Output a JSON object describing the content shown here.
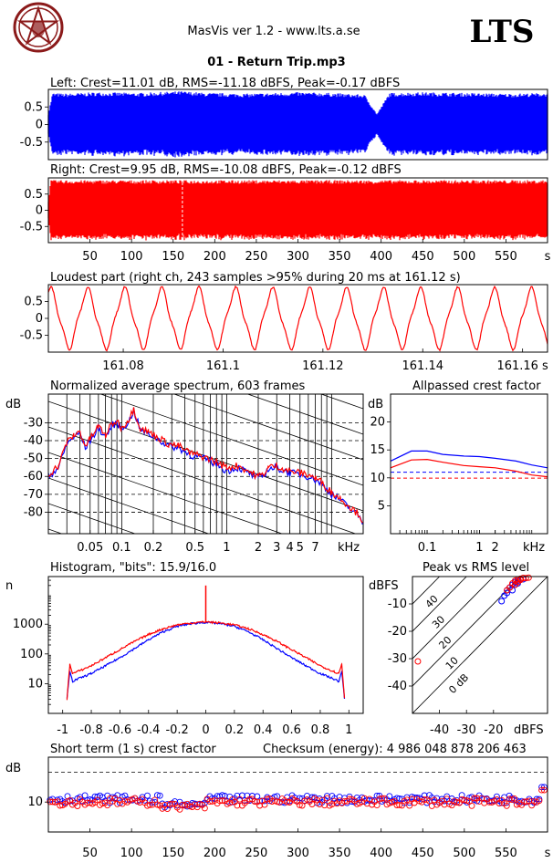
{
  "header": {
    "app_title": "MasVis ver 1.2 - www.lts.a.se",
    "brand": "LTS",
    "file_title": "01 - Return Trip.mp3"
  },
  "chart_data": [
    {
      "id": "left",
      "type": "area",
      "title": "Left: Crest=11.01 dB, RMS=-11.18 dBFS, Peak=-0.17 dBFS",
      "color": "#0000ff",
      "ylim": [
        -1,
        1
      ],
      "yticks": [
        "0.5",
        "0",
        "-0.5"
      ],
      "ytick_values": [
        0.5,
        0,
        -0.5
      ],
      "xlim": [
        0,
        600
      ],
      "envelope_x": [
        0,
        5,
        20,
        60,
        110,
        160,
        190,
        240,
        300,
        340,
        380,
        395,
        410,
        450,
        500,
        550,
        600
      ],
      "envelope_y": [
        0.3,
        0.9,
        0.88,
        0.92,
        0.9,
        0.95,
        0.9,
        0.88,
        0.92,
        0.9,
        0.85,
        0.3,
        0.9,
        0.92,
        0.9,
        0.88,
        0.9
      ]
    },
    {
      "id": "right",
      "type": "area",
      "title": "Right: Crest=9.95 dB, RMS=-10.08 dBFS, Peak=-0.12 dBFS",
      "color": "#ff0000",
      "ylim": [
        -1,
        1
      ],
      "yticks": [
        "0.5",
        "0",
        "-0.5"
      ],
      "ytick_values": [
        0.5,
        0,
        -0.5
      ],
      "xlim": [
        0,
        600
      ],
      "xticks": [
        "50",
        "100",
        "150",
        "200",
        "250",
        "300",
        "350",
        "400",
        "450",
        "500",
        "550",
        "s"
      ],
      "xtick_values": [
        50,
        100,
        150,
        200,
        250,
        300,
        350,
        400,
        450,
        500,
        550,
        600
      ],
      "marker_x": 161.12
    },
    {
      "id": "loudest",
      "type": "line",
      "title": "Loudest part (right ch, 243 samples >95% during 20 ms at 161.12 s)",
      "color": "#ff0000",
      "xlim": [
        161.065,
        161.165
      ],
      "ylim": [
        -1,
        1
      ],
      "yticks": [
        "0.5",
        "0",
        "-0.5"
      ],
      "ytick_values": [
        0.5,
        0,
        -0.5
      ],
      "xticks": [
        "161.08",
        "161.1",
        "161.12",
        "161.14",
        "161.16 s"
      ],
      "xtick_values": [
        161.08,
        161.1,
        161.12,
        161.14,
        161.16
      ],
      "periods": 13.5
    },
    {
      "id": "spectrum",
      "type": "line",
      "title": "Normalized average spectrum, 603 frames",
      "ylabel": "dB",
      "xlabel": "kHz",
      "xscale": "log",
      "xlim": [
        0.02,
        20
      ],
      "ylim": [
        -92,
        -14
      ],
      "yticks": [
        "-30",
        "-40",
        "-50",
        "-60",
        "-70",
        "-80"
      ],
      "ytick_values": [
        -30,
        -40,
        -50,
        -60,
        -70,
        -80
      ],
      "xticks": [
        "0.05",
        "0.1",
        "0.2",
        "0.5",
        "1",
        "2",
        "3",
        "4",
        "5",
        "7"
      ],
      "xtick_values": [
        0.05,
        0.1,
        0.2,
        0.5,
        1,
        2,
        3,
        4,
        5,
        7
      ],
      "series": [
        {
          "color": "#0000ff",
          "x": [
            0.02,
            0.025,
            0.03,
            0.035,
            0.04,
            0.045,
            0.05,
            0.06,
            0.07,
            0.08,
            0.09,
            0.1,
            0.12,
            0.13,
            0.15,
            0.18,
            0.22,
            0.28,
            0.35,
            0.45,
            0.6,
            0.8,
            1.0,
            1.3,
            1.6,
            2.0,
            2.2,
            2.5,
            3.0,
            3.5,
            4.0,
            5.0,
            6.0,
            7.0,
            8.0,
            10.0,
            12.0,
            15.0,
            18.0,
            20.0
          ],
          "y": [
            -60,
            -55,
            -42,
            -38,
            -36,
            -44,
            -40,
            -33,
            -38,
            -32,
            -30,
            -34,
            -28,
            -23,
            -34,
            -36,
            -39,
            -43,
            -44,
            -48,
            -50,
            -53,
            -57,
            -55,
            -58,
            -61,
            -60,
            -56,
            -55,
            -57,
            -58,
            -59,
            -60,
            -62,
            -64,
            -70,
            -73,
            -78,
            -82,
            -86
          ]
        },
        {
          "color": "#ff0000",
          "x": [
            0.02,
            0.025,
            0.03,
            0.035,
            0.04,
            0.045,
            0.05,
            0.06,
            0.07,
            0.08,
            0.09,
            0.1,
            0.12,
            0.13,
            0.15,
            0.18,
            0.22,
            0.28,
            0.35,
            0.45,
            0.6,
            0.8,
            1.0,
            1.3,
            1.6,
            2.0,
            2.2,
            2.5,
            3.0,
            3.5,
            4.0,
            5.0,
            6.0,
            7.0,
            8.0,
            10.0,
            12.0,
            15.0,
            18.0,
            20.0
          ],
          "y": [
            -59,
            -54,
            -41,
            -37,
            -35,
            -43,
            -39,
            -32,
            -37,
            -31,
            -29,
            -33,
            -27,
            -22,
            -33,
            -35,
            -38,
            -42,
            -43,
            -47,
            -49,
            -52,
            -55,
            -54,
            -57,
            -60,
            -59,
            -55,
            -54,
            -56,
            -57,
            -58,
            -59,
            -61,
            -63,
            -69,
            -72,
            -77,
            -81,
            -85
          ]
        }
      ]
    },
    {
      "id": "allpass",
      "type": "line",
      "title": "Allpassed crest factor",
      "ylabel": "dB",
      "xlabel": "kHz",
      "xscale": "log",
      "xlim": [
        0.02,
        20
      ],
      "ylim": [
        0,
        25
      ],
      "yticks": [
        "20",
        "15",
        "10",
        "5"
      ],
      "ytick_values": [
        20,
        15,
        10,
        5
      ],
      "xticks": [
        "0.1",
        "1",
        "2"
      ],
      "xtick_values": [
        0.1,
        1,
        2
      ],
      "series": [
        {
          "color": "#0000ff",
          "x": [
            0.02,
            0.05,
            0.1,
            0.2,
            0.5,
            1,
            2,
            5,
            10,
            20
          ],
          "y": [
            13,
            14.8,
            14.8,
            14.2,
            13.9,
            13.8,
            13.5,
            13.0,
            12.3,
            11.8
          ]
        },
        {
          "color": "#ff0000",
          "x": [
            0.02,
            0.05,
            0.1,
            0.2,
            0.5,
            1,
            2,
            5,
            10,
            20
          ],
          "y": [
            11.8,
            13.2,
            13.3,
            12.8,
            12.2,
            12.0,
            11.8,
            11.2,
            10.5,
            10.2
          ]
        }
      ],
      "reference_lines": [
        {
          "color": "#0000ff",
          "y": 11.01
        },
        {
          "color": "#ff0000",
          "y": 9.95
        }
      ]
    },
    {
      "id": "histogram",
      "type": "line",
      "title": "Histogram, \"bits\": 15.9/16.0",
      "ylabel": "n",
      "yscale": "log",
      "xlim": [
        -1.1,
        1.1
      ],
      "ylim": [
        1,
        40000
      ],
      "yticks": [
        "1000",
        "100",
        "10"
      ],
      "ytick_values": [
        1000,
        100,
        10
      ],
      "xticks": [
        "-1",
        "-0.8",
        "-0.6",
        "-0.4",
        "-0.2",
        "0",
        "0.2",
        "0.4",
        "0.6",
        "0.8",
        "1"
      ],
      "xtick_values": [
        -1,
        -0.8,
        -0.6,
        -0.4,
        -0.2,
        0,
        0.2,
        0.4,
        0.6,
        0.8,
        1
      ],
      "series": [
        {
          "color": "#0000ff",
          "x": [
            -0.97,
            -0.95,
            -0.93,
            -0.9,
            -0.8,
            -0.7,
            -0.6,
            -0.5,
            -0.4,
            -0.3,
            -0.2,
            -0.1,
            0,
            0.1,
            0.2,
            0.3,
            0.4,
            0.5,
            0.6,
            0.7,
            0.8,
            0.9,
            0.93,
            0.95,
            0.97
          ],
          "y": [
            3,
            25,
            12,
            14,
            22,
            40,
            75,
            150,
            300,
            550,
            850,
            1050,
            1150,
            1050,
            850,
            550,
            300,
            150,
            75,
            40,
            22,
            14,
            12,
            25,
            3
          ]
        },
        {
          "color": "#ff0000",
          "x": [
            -0.97,
            -0.95,
            -0.93,
            -0.9,
            -0.8,
            -0.7,
            -0.6,
            -0.5,
            -0.4,
            -0.3,
            -0.2,
            -0.1,
            0,
            0.1,
            0.2,
            0.3,
            0.4,
            0.5,
            0.6,
            0.7,
            0.8,
            0.9,
            0.93,
            0.95,
            0.97
          ],
          "y": [
            3,
            45,
            22,
            25,
            40,
            75,
            140,
            260,
            450,
            700,
            950,
            1100,
            1200,
            1100,
            950,
            700,
            450,
            260,
            140,
            75,
            40,
            25,
            22,
            45,
            3
          ]
        }
      ],
      "spike": {
        "x": 0,
        "y": 20000
      }
    },
    {
      "id": "peak_vs_rms",
      "type": "scatter",
      "title": "Peak vs RMS level",
      "ylabel": "dBFS",
      "xlabel": "dBFS",
      "xlim": [
        -50,
        0
      ],
      "ylim": [
        -50,
        0
      ],
      "yticks": [
        "-10",
        "-20",
        "-30",
        "-40"
      ],
      "ytick_values": [
        -10,
        -20,
        -30,
        -40
      ],
      "xticks": [
        "-40",
        "-30",
        "-20"
      ],
      "xtick_values": [
        -40,
        -30,
        -20
      ],
      "diagonal_labels": [
        "40",
        "30",
        "20",
        "10",
        "0 dB"
      ],
      "diagonal_offsets": [
        40,
        30,
        20,
        10,
        0
      ],
      "series": [
        {
          "color": "#0000ff",
          "x": [
            -17,
            -16,
            -15,
            -14,
            -13,
            -12,
            -11,
            -10,
            -12,
            -13,
            -15,
            -11,
            -9
          ],
          "y": [
            -9,
            -7,
            -5,
            -4,
            -3,
            -2,
            -1.5,
            -1,
            -3,
            -5,
            -6,
            -2.5,
            -1
          ]
        },
        {
          "color": "#ff0000",
          "x": [
            -48,
            -15,
            -14,
            -13,
            -12,
            -11,
            -10,
            -9,
            -10,
            -11,
            -12,
            -8,
            -7
          ],
          "y": [
            -31,
            -5,
            -4,
            -2.5,
            -1.5,
            -1,
            -0.8,
            -0.5,
            -1.2,
            -2,
            -3,
            -0.6,
            -0.4
          ]
        }
      ]
    },
    {
      "id": "crest_short",
      "type": "scatter",
      "title": "Short term (1 s) crest factor",
      "checksum": "Checksum (energy):  4 986 048 878 206 463",
      "ylabel": "dB",
      "xlim": [
        0,
        600
      ],
      "ylim": [
        0,
        25
      ],
      "yticks": [
        "10"
      ],
      "ytick_values": [
        10
      ],
      "dashed_y": 20,
      "xticks": [
        "50",
        "100",
        "150",
        "200",
        "250",
        "300",
        "350",
        "400",
        "450",
        "500",
        "550",
        "s"
      ],
      "xtick_values": [
        50,
        100,
        150,
        200,
        250,
        300,
        350,
        400,
        450,
        500,
        550,
        600
      ],
      "series": [
        {
          "color": "#0000ff",
          "mean": 11.0,
          "dip_x": [
            135,
            190
          ],
          "dip_y": 9.2,
          "end_y": 15
        },
        {
          "color": "#ff0000",
          "mean": 10.0,
          "dip_x": [
            135,
            190
          ],
          "dip_y": 8.5,
          "end_y": 14
        }
      ]
    }
  ]
}
